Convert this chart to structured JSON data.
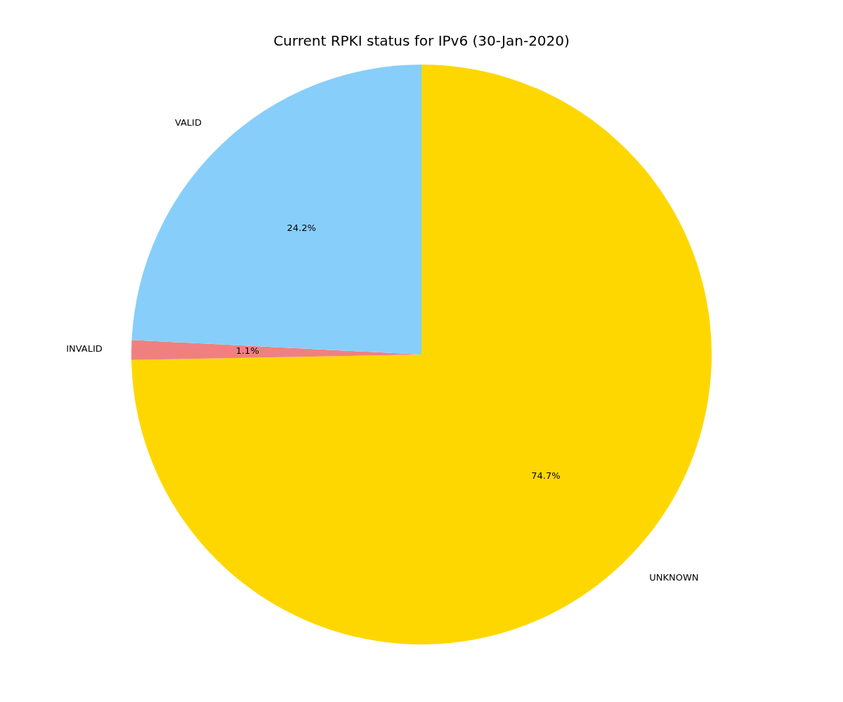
{
  "chart_data": {
    "type": "pie",
    "title": "Current RPKI status for IPv6 (30-Jan-2020)",
    "categories": [
      "VALID",
      "INVALID",
      "UNKNOWN"
    ],
    "values": [
      24.2,
      1.1,
      74.7
    ],
    "colors": [
      "#87cefa",
      "#f08080",
      "#ffd700"
    ],
    "value_labels": [
      "24.2%",
      "1.1%",
      "74.7%"
    ],
    "legend": false
  }
}
